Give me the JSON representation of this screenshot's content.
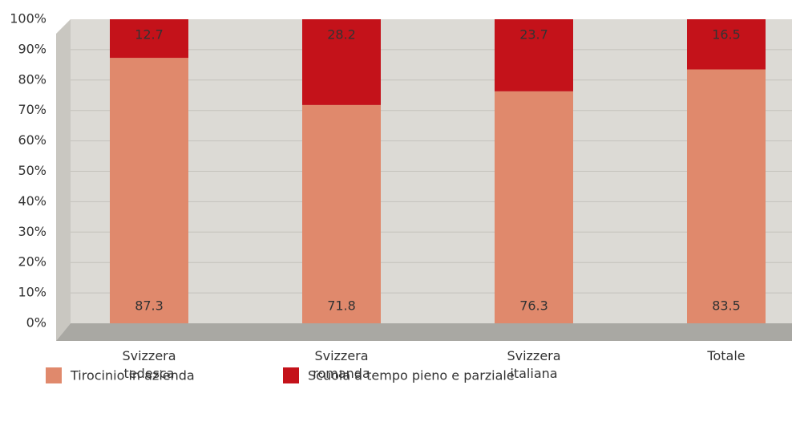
{
  "chart_data": {
    "type": "stacked_bar",
    "categories": [
      "Svizzera tedesca",
      "Svizzera romanda",
      "Svizzera italiana",
      "Totale"
    ],
    "series": [
      {
        "name": "Tirocinio in azienda",
        "color": "#e0896c",
        "values": [
          87.3,
          71.8,
          76.3,
          83.5
        ]
      },
      {
        "name": "Scuola a tempo pieno e parziale",
        "color": "#c4121a",
        "values": [
          12.7,
          28.2,
          23.7,
          16.5
        ]
      }
    ],
    "ylim": [
      0,
      100
    ],
    "yticks": [
      {
        "value": 0,
        "label": "0%"
      },
      {
        "value": 10,
        "label": "10%"
      },
      {
        "value": 20,
        "label": "20%"
      },
      {
        "value": 30,
        "label": "30%"
      },
      {
        "value": 40,
        "label": "40%"
      },
      {
        "value": 50,
        "label": "50%"
      },
      {
        "value": 60,
        "label": "60%"
      },
      {
        "value": 70,
        "label": "70%"
      },
      {
        "value": 80,
        "label": "80%"
      },
      {
        "value": 90,
        "label": "90%"
      },
      {
        "value": 100,
        "label": "100%"
      }
    ],
    "grid": true,
    "legend": "bottom"
  }
}
